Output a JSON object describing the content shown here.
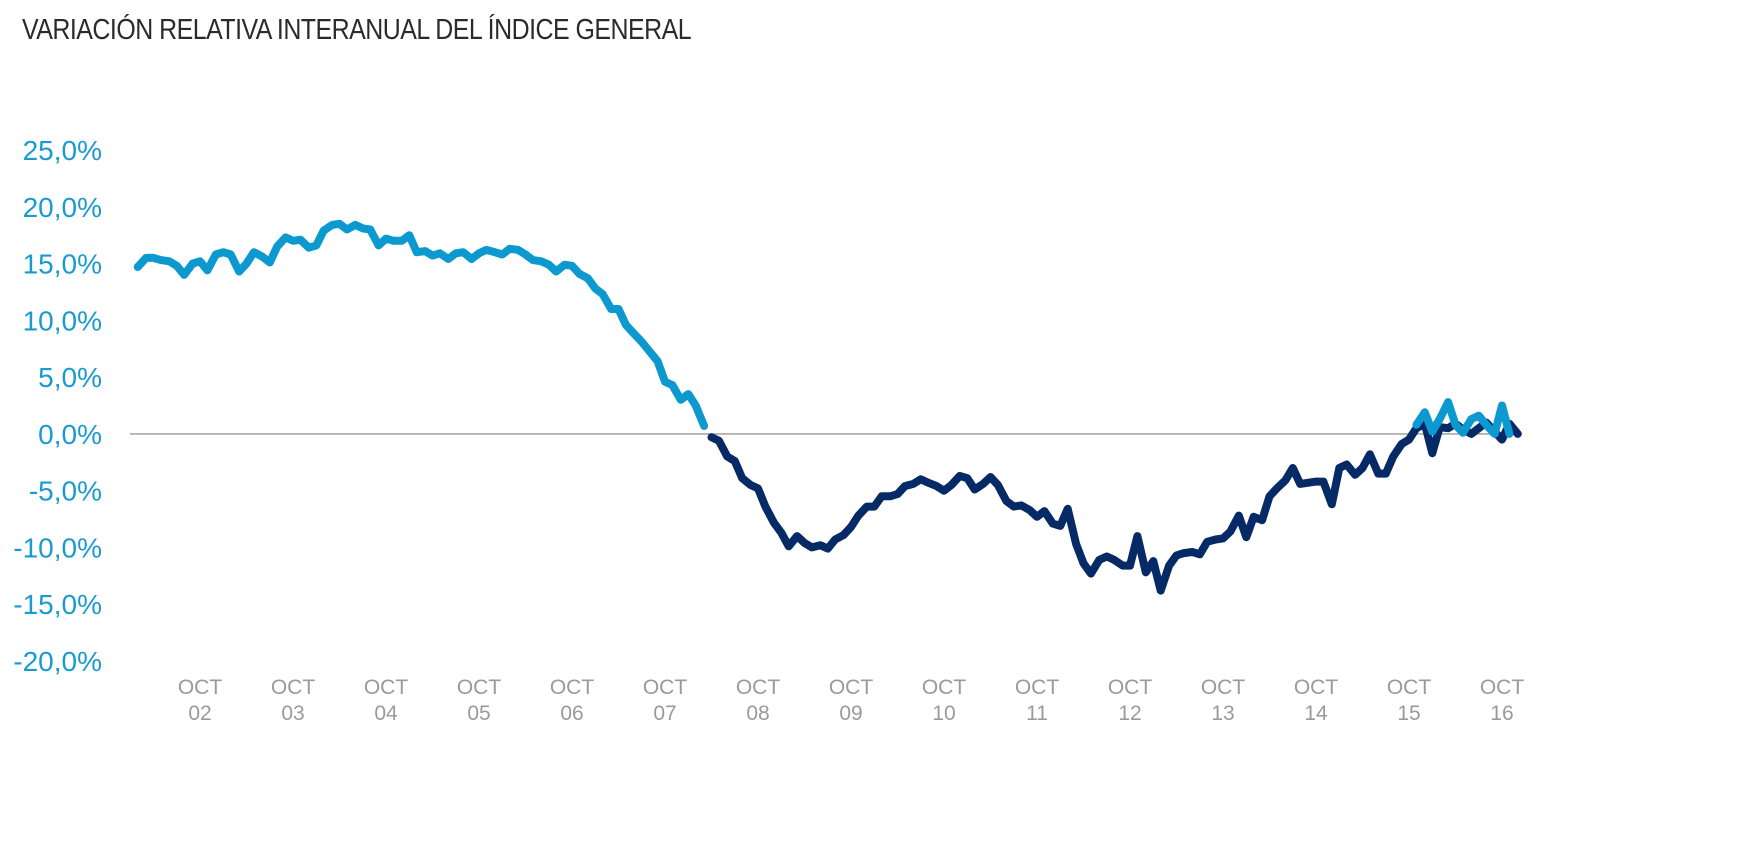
{
  "colors": {
    "positive": "#0c99cf",
    "negative": "#062a66",
    "zero_line": "#a8a8a8",
    "ytick": "#1a9bd0",
    "xtick": "#9a9a9a"
  },
  "chart_data": {
    "type": "line",
    "title": "VARIACIÓN RELATIVA INTERANUAL DEL ÍNDICE GENERAL",
    "xlabel": "",
    "ylabel": "",
    "ylim": [
      -20,
      25
    ],
    "yticks": [
      "25,0%",
      "20,0%",
      "15,0%",
      "10,0%",
      "5,0%",
      "0,0%",
      "-5,0%",
      "-10,0%",
      "-15,0%",
      "-20,0%"
    ],
    "ytick_values": [
      25,
      20,
      15,
      10,
      5,
      0,
      -5,
      -10,
      -15,
      -20
    ],
    "xticks": [
      {
        "line1": "OCT",
        "line2": "02",
        "year": 2002.75
      },
      {
        "line1": "OCT",
        "line2": "03",
        "year": 2003.75
      },
      {
        "line1": "OCT",
        "line2": "04",
        "year": 2004.75
      },
      {
        "line1": "OCT",
        "line2": "05",
        "year": 2005.75
      },
      {
        "line1": "OCT",
        "line2": "06",
        "year": 2006.75
      },
      {
        "line1": "OCT",
        "line2": "07",
        "year": 2007.75
      },
      {
        "line1": "OCT",
        "line2": "08",
        "year": 2008.75
      },
      {
        "line1": "OCT",
        "line2": "09",
        "year": 2009.75
      },
      {
        "line1": "OCT",
        "line2": "10",
        "year": 2010.75
      },
      {
        "line1": "OCT",
        "line2": "11",
        "year": 2011.75
      },
      {
        "line1": "OCT",
        "line2": "12",
        "year": 2012.75
      },
      {
        "line1": "OCT",
        "line2": "13",
        "year": 2013.75
      },
      {
        "line1": "OCT",
        "line2": "14",
        "year": 2014.75
      },
      {
        "line1": "OCT",
        "line2": "15",
        "year": 2015.75
      },
      {
        "line1": "OCT",
        "line2": "16",
        "year": 2016.75
      }
    ],
    "grid": false,
    "series": [
      {
        "points": [
          [
            2002.08,
            14.7
          ],
          [
            2002.17,
            15.5
          ],
          [
            2002.25,
            15.5
          ],
          [
            2002.33,
            15.3
          ],
          [
            2002.42,
            15.2
          ],
          [
            2002.5,
            14.8
          ],
          [
            2002.58,
            14.0
          ],
          [
            2002.67,
            15.0
          ],
          [
            2002.75,
            15.2
          ],
          [
            2002.83,
            14.4
          ],
          [
            2002.92,
            15.8
          ],
          [
            2003.0,
            16.0
          ],
          [
            2003.08,
            15.8
          ],
          [
            2003.17,
            14.3
          ],
          [
            2003.25,
            15.0
          ],
          [
            2003.33,
            16.0
          ],
          [
            2003.42,
            15.6
          ],
          [
            2003.5,
            15.1
          ],
          [
            2003.58,
            16.5
          ],
          [
            2003.67,
            17.3
          ],
          [
            2003.75,
            17.0
          ],
          [
            2003.83,
            17.1
          ],
          [
            2003.92,
            16.4
          ],
          [
            2004.0,
            16.6
          ],
          [
            2004.08,
            17.9
          ],
          [
            2004.17,
            18.4
          ],
          [
            2004.25,
            18.5
          ],
          [
            2004.33,
            18.0
          ],
          [
            2004.42,
            18.4
          ],
          [
            2004.5,
            18.1
          ],
          [
            2004.58,
            18.0
          ],
          [
            2004.67,
            16.6
          ],
          [
            2004.75,
            17.2
          ],
          [
            2004.83,
            17.0
          ],
          [
            2004.92,
            17.0
          ],
          [
            2005.0,
            17.5
          ],
          [
            2005.08,
            16.0
          ],
          [
            2005.17,
            16.1
          ],
          [
            2005.25,
            15.7
          ],
          [
            2005.33,
            15.9
          ],
          [
            2005.42,
            15.4
          ],
          [
            2005.5,
            15.9
          ],
          [
            2005.58,
            16.0
          ],
          [
            2005.67,
            15.4
          ],
          [
            2005.75,
            15.9
          ],
          [
            2005.83,
            16.2
          ],
          [
            2005.92,
            16.0
          ],
          [
            2006.0,
            15.8
          ],
          [
            2006.08,
            16.3
          ],
          [
            2006.17,
            16.2
          ],
          [
            2006.25,
            15.8
          ],
          [
            2006.33,
            15.3
          ],
          [
            2006.42,
            15.2
          ],
          [
            2006.5,
            14.9
          ],
          [
            2006.58,
            14.3
          ],
          [
            2006.67,
            14.9
          ],
          [
            2006.75,
            14.8
          ],
          [
            2006.83,
            14.1
          ],
          [
            2006.92,
            13.7
          ],
          [
            2007.0,
            12.8
          ],
          [
            2007.08,
            12.3
          ],
          [
            2007.17,
            11.0
          ],
          [
            2007.25,
            11.0
          ],
          [
            2007.33,
            9.6
          ],
          [
            2007.42,
            8.8
          ],
          [
            2007.5,
            8.1
          ],
          [
            2007.58,
            7.3
          ],
          [
            2007.67,
            6.4
          ],
          [
            2007.75,
            4.6
          ],
          [
            2007.83,
            4.3
          ],
          [
            2007.92,
            3.0
          ],
          [
            2008.0,
            3.5
          ],
          [
            2008.08,
            2.5
          ],
          [
            2008.17,
            0.7
          ]
        ]
      },
      {
        "points": [
          [
            2008.25,
            -0.3
          ],
          [
            2008.33,
            -0.6
          ],
          [
            2008.42,
            -2.0
          ],
          [
            2008.5,
            -2.4
          ],
          [
            2008.58,
            -3.9
          ],
          [
            2008.67,
            -4.5
          ],
          [
            2008.75,
            -4.8
          ],
          [
            2008.83,
            -6.4
          ],
          [
            2008.92,
            -7.8
          ],
          [
            2009.0,
            -8.7
          ],
          [
            2009.08,
            -9.9
          ],
          [
            2009.17,
            -9.0
          ],
          [
            2009.25,
            -9.6
          ],
          [
            2009.33,
            -10.0
          ],
          [
            2009.42,
            -9.8
          ],
          [
            2009.5,
            -10.1
          ],
          [
            2009.58,
            -9.3
          ],
          [
            2009.67,
            -8.9
          ],
          [
            2009.75,
            -8.2
          ],
          [
            2009.83,
            -7.2
          ],
          [
            2009.92,
            -6.4
          ],
          [
            2010.0,
            -6.4
          ],
          [
            2010.08,
            -5.5
          ],
          [
            2010.17,
            -5.5
          ],
          [
            2010.25,
            -5.3
          ],
          [
            2010.33,
            -4.6
          ],
          [
            2010.42,
            -4.4
          ],
          [
            2010.5,
            -4.0
          ],
          [
            2010.58,
            -4.3
          ],
          [
            2010.67,
            -4.6
          ],
          [
            2010.75,
            -5.0
          ],
          [
            2010.83,
            -4.5
          ],
          [
            2010.92,
            -3.7
          ],
          [
            2011.0,
            -3.9
          ],
          [
            2011.08,
            -4.9
          ],
          [
            2011.17,
            -4.4
          ],
          [
            2011.25,
            -3.8
          ],
          [
            2011.33,
            -4.5
          ],
          [
            2011.42,
            -5.9
          ],
          [
            2011.5,
            -6.4
          ],
          [
            2011.58,
            -6.3
          ],
          [
            2011.67,
            -6.7
          ],
          [
            2011.75,
            -7.3
          ],
          [
            2011.83,
            -6.8
          ],
          [
            2011.92,
            -7.9
          ],
          [
            2012.0,
            -8.1
          ],
          [
            2012.08,
            -6.6
          ],
          [
            2012.17,
            -9.7
          ],
          [
            2012.25,
            -11.4
          ],
          [
            2012.33,
            -12.3
          ],
          [
            2012.42,
            -11.1
          ],
          [
            2012.5,
            -10.8
          ],
          [
            2012.58,
            -11.1
          ],
          [
            2012.67,
            -11.6
          ],
          [
            2012.75,
            -11.6
          ],
          [
            2012.83,
            -9.0
          ],
          [
            2012.92,
            -12.2
          ],
          [
            2013.0,
            -11.2
          ],
          [
            2013.08,
            -13.8
          ],
          [
            2013.17,
            -11.6
          ],
          [
            2013.25,
            -10.7
          ],
          [
            2013.33,
            -10.5
          ],
          [
            2013.42,
            -10.4
          ],
          [
            2013.5,
            -10.6
          ],
          [
            2013.58,
            -9.5
          ],
          [
            2013.67,
            -9.3
          ],
          [
            2013.75,
            -9.2
          ],
          [
            2013.83,
            -8.6
          ],
          [
            2013.92,
            -7.2
          ],
          [
            2014.0,
            -9.1
          ],
          [
            2014.08,
            -7.3
          ],
          [
            2014.17,
            -7.6
          ],
          [
            2014.25,
            -5.5
          ],
          [
            2014.33,
            -4.8
          ],
          [
            2014.42,
            -4.1
          ],
          [
            2014.5,
            -3.0
          ],
          [
            2014.58,
            -4.4
          ],
          [
            2014.67,
            -4.3
          ],
          [
            2014.75,
            -4.2
          ],
          [
            2014.83,
            -4.2
          ],
          [
            2014.92,
            -6.2
          ],
          [
            2015.0,
            -3.0
          ],
          [
            2015.08,
            -2.7
          ],
          [
            2015.17,
            -3.6
          ],
          [
            2015.25,
            -3.0
          ],
          [
            2015.33,
            -1.8
          ],
          [
            2015.42,
            -3.5
          ],
          [
            2015.5,
            -3.5
          ],
          [
            2015.58,
            -2.0
          ],
          [
            2015.67,
            -0.9
          ],
          [
            2015.75,
            -0.5
          ],
          [
            2015.83,
            0.5
          ],
          [
            2015.92,
            0.9
          ],
          [
            2016.0,
            -1.7
          ],
          [
            2016.08,
            0.6
          ],
          [
            2016.17,
            0.5
          ],
          [
            2016.25,
            0.9
          ],
          [
            2016.33,
            0.4
          ],
          [
            2016.42,
            0.0
          ],
          [
            2016.5,
            0.5
          ],
          [
            2016.58,
            1.0
          ],
          [
            2016.67,
            0.2
          ],
          [
            2016.75,
            -0.5
          ],
          [
            2016.83,
            0.9
          ],
          [
            2016.92,
            0.0
          ]
        ]
      },
      {
        "points": [
          [
            2015.83,
            0.8
          ],
          [
            2015.92,
            1.9
          ],
          [
            2016.0,
            0.2
          ],
          [
            2016.08,
            1.3
          ],
          [
            2016.17,
            2.8
          ],
          [
            2016.25,
            0.8
          ],
          [
            2016.33,
            0.1
          ],
          [
            2016.42,
            1.3
          ],
          [
            2016.5,
            1.6
          ],
          [
            2016.58,
            0.8
          ],
          [
            2016.67,
            0.0
          ],
          [
            2016.75,
            2.5
          ],
          [
            2016.83,
            0.0
          ]
        ]
      }
    ]
  }
}
